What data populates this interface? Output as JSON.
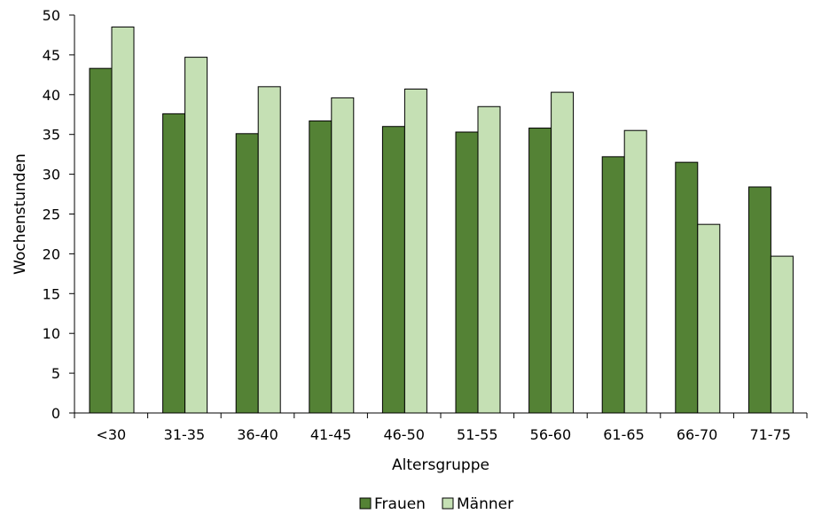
{
  "chart_data": {
    "type": "bar",
    "categories": [
      "<30",
      "31-35",
      "36-40",
      "41-45",
      "46-50",
      "51-55",
      "56-60",
      "61-65",
      "66-70",
      "71-75"
    ],
    "series": [
      {
        "name": "Frauen",
        "color": "#548235",
        "values": [
          43.3,
          37.6,
          35.1,
          36.7,
          36.0,
          35.3,
          35.8,
          32.2,
          31.5,
          28.4
        ]
      },
      {
        "name": "Männer",
        "color": "#c5e0b4",
        "values": [
          48.5,
          44.7,
          41.0,
          39.6,
          40.7,
          38.5,
          40.3,
          35.5,
          23.7,
          19.7
        ]
      }
    ],
    "xlabel": "Altersgruppe",
    "ylabel": "Wochenstunden",
    "ylim": [
      0,
      50
    ],
    "yticks": [
      0,
      5,
      10,
      15,
      20,
      25,
      30,
      35,
      40,
      45,
      50
    ],
    "grid": false,
    "legend_position": "bottom"
  }
}
